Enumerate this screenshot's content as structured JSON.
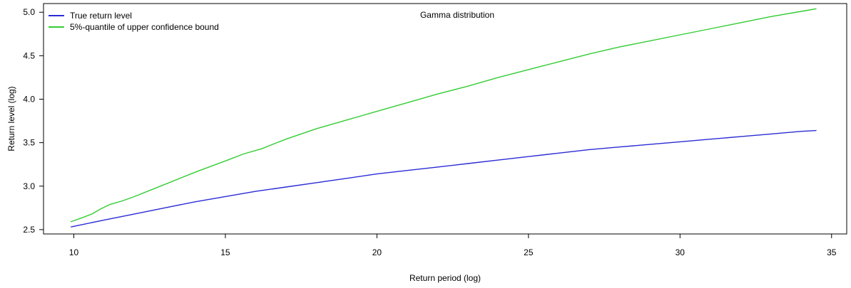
{
  "chart_data": {
    "type": "line",
    "title": "Gamma distribution",
    "xlabel": "Return period (log)",
    "ylabel": "Return level (log)",
    "xlim": [
      9,
      35.5
    ],
    "ylim": [
      2.45,
      5.1
    ],
    "xticks": [
      10,
      15,
      20,
      25,
      30,
      35
    ],
    "yticks": [
      2.5,
      3.0,
      3.5,
      4.0,
      4.5,
      5.0
    ],
    "xtick_labels": [
      "10",
      "15",
      "20",
      "25",
      "30",
      "35"
    ],
    "ytick_labels": [
      "2.5",
      "3.0",
      "3.5",
      "4.0",
      "4.5",
      "5.0"
    ],
    "legend_position": "top-left",
    "grid": false,
    "series": [
      {
        "name": "True return level",
        "color": "#2b2bd6",
        "x": [
          9.9,
          11,
          12,
          13,
          14,
          15,
          16,
          17,
          18,
          19,
          20,
          21,
          22,
          23,
          24,
          25,
          26,
          27,
          28,
          29,
          30,
          31,
          32,
          33,
          34,
          34.5
        ],
        "y": [
          2.53,
          2.61,
          2.68,
          2.75,
          2.82,
          2.88,
          2.94,
          2.99,
          3.04,
          3.09,
          3.14,
          3.18,
          3.22,
          3.26,
          3.3,
          3.34,
          3.38,
          3.42,
          3.45,
          3.48,
          3.51,
          3.54,
          3.57,
          3.6,
          3.63,
          3.64
        ]
      },
      {
        "name": "5%-quantile of upper confidence bound",
        "color": "#33cc33",
        "x": [
          9.9,
          10.3,
          10.6,
          10.9,
          11.2,
          11.6,
          12,
          13,
          14,
          15,
          15.6,
          16.2,
          16.7,
          17,
          18,
          19,
          20,
          21,
          22,
          23,
          24,
          25,
          26,
          27,
          28,
          29,
          30,
          31,
          32,
          33,
          34,
          34.5
        ],
        "y": [
          2.59,
          2.64,
          2.68,
          2.74,
          2.79,
          2.83,
          2.88,
          3.02,
          3.16,
          3.29,
          3.37,
          3.43,
          3.5,
          3.54,
          3.66,
          3.76,
          3.86,
          3.96,
          4.06,
          4.15,
          4.25,
          4.34,
          4.43,
          4.52,
          4.6,
          4.67,
          4.74,
          4.81,
          4.88,
          4.95,
          5.01,
          5.04
        ]
      }
    ]
  }
}
